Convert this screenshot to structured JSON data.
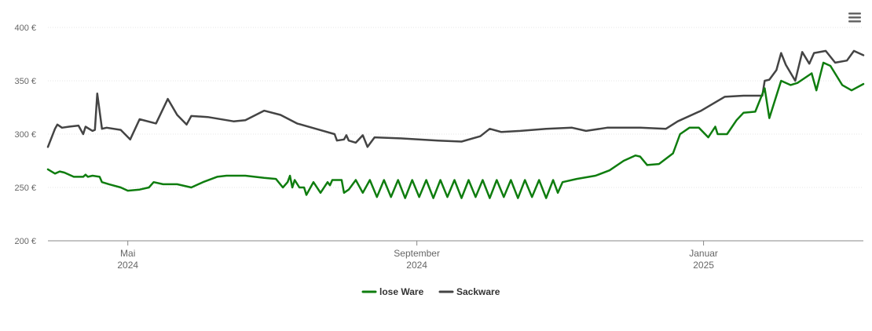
{
  "chart_data": {
    "type": "line",
    "y_unit": "€",
    "ylim": [
      200,
      400
    ],
    "y_ticks": [
      {
        "value": 200,
        "label": "200 €"
      },
      {
        "value": 250,
        "label": "250 €"
      },
      {
        "value": 300,
        "label": "300 €"
      },
      {
        "value": 350,
        "label": "350 €"
      },
      {
        "value": 400,
        "label": "400 €"
      }
    ],
    "xlim": [
      "2024-03-28",
      "2025-03-10"
    ],
    "x_ticks": [
      {
        "date": "2024-05-01",
        "line1": "Mai",
        "line2": "2024"
      },
      {
        "date": "2024-09-01",
        "line1": "September",
        "line2": "2024"
      },
      {
        "date": "2025-01-01",
        "line1": "Januar",
        "line2": "2025"
      }
    ],
    "grid": true,
    "legend_position": "bottom-center",
    "series": [
      {
        "name": "lose Ware",
        "color": "#0f7d0f",
        "points": [
          [
            "2024-03-28",
            267
          ],
          [
            "2024-03-31",
            263
          ],
          [
            "2024-04-02",
            265
          ],
          [
            "2024-04-04",
            264
          ],
          [
            "2024-04-08",
            260
          ],
          [
            "2024-04-12",
            260
          ],
          [
            "2024-04-13",
            262
          ],
          [
            "2024-04-14",
            260
          ],
          [
            "2024-04-16",
            261
          ],
          [
            "2024-04-19",
            260
          ],
          [
            "2024-04-20",
            255
          ],
          [
            "2024-04-23",
            253
          ],
          [
            "2024-04-28",
            250
          ],
          [
            "2024-05-01",
            247
          ],
          [
            "2024-05-06",
            248
          ],
          [
            "2024-05-10",
            250
          ],
          [
            "2024-05-12",
            255
          ],
          [
            "2024-05-16",
            253
          ],
          [
            "2024-05-22",
            253
          ],
          [
            "2024-05-28",
            250
          ],
          [
            "2024-06-02",
            255
          ],
          [
            "2024-06-08",
            260
          ],
          [
            "2024-06-12",
            261
          ],
          [
            "2024-06-20",
            261
          ],
          [
            "2024-06-28",
            259
          ],
          [
            "2024-07-03",
            258
          ],
          [
            "2024-07-06",
            250
          ],
          [
            "2024-07-08",
            255
          ],
          [
            "2024-07-09",
            261
          ],
          [
            "2024-07-10",
            250
          ],
          [
            "2024-07-11",
            257
          ],
          [
            "2024-07-13",
            250
          ],
          [
            "2024-07-15",
            250
          ],
          [
            "2024-07-16",
            243
          ],
          [
            "2024-07-19",
            255
          ],
          [
            "2024-07-22",
            245
          ],
          [
            "2024-07-25",
            255
          ],
          [
            "2024-07-26",
            252
          ],
          [
            "2024-07-27",
            257
          ],
          [
            "2024-07-31",
            257
          ],
          [
            "2024-08-01",
            245
          ],
          [
            "2024-08-03",
            248
          ],
          [
            "2024-08-06",
            257
          ],
          [
            "2024-08-09",
            245
          ],
          [
            "2024-08-12",
            257
          ],
          [
            "2024-08-15",
            241
          ],
          [
            "2024-08-18",
            257
          ],
          [
            "2024-08-21",
            241
          ],
          [
            "2024-08-24",
            257
          ],
          [
            "2024-08-27",
            240
          ],
          [
            "2024-08-30",
            257
          ],
          [
            "2024-09-02",
            241
          ],
          [
            "2024-09-05",
            257
          ],
          [
            "2024-09-08",
            240
          ],
          [
            "2024-09-11",
            257
          ],
          [
            "2024-09-14",
            241
          ],
          [
            "2024-09-17",
            257
          ],
          [
            "2024-09-20",
            240
          ],
          [
            "2024-09-23",
            257
          ],
          [
            "2024-09-26",
            241
          ],
          [
            "2024-09-29",
            257
          ],
          [
            "2024-10-02",
            240
          ],
          [
            "2024-10-05",
            257
          ],
          [
            "2024-10-08",
            241
          ],
          [
            "2024-10-11",
            257
          ],
          [
            "2024-10-14",
            240
          ],
          [
            "2024-10-17",
            257
          ],
          [
            "2024-10-20",
            241
          ],
          [
            "2024-10-23",
            257
          ],
          [
            "2024-10-26",
            240
          ],
          [
            "2024-10-29",
            257
          ],
          [
            "2024-10-31",
            245
          ],
          [
            "2024-11-02",
            255
          ],
          [
            "2024-11-08",
            258
          ],
          [
            "2024-11-16",
            261
          ],
          [
            "2024-11-22",
            266
          ],
          [
            "2024-11-28",
            275
          ],
          [
            "2024-12-03",
            280
          ],
          [
            "2024-12-05",
            279
          ],
          [
            "2024-12-08",
            271
          ],
          [
            "2024-12-13",
            272
          ],
          [
            "2024-12-19",
            282
          ],
          [
            "2024-12-22",
            300
          ],
          [
            "2024-12-26",
            306
          ],
          [
            "2024-12-30",
            306
          ],
          [
            "2025-01-03",
            297
          ],
          [
            "2025-01-06",
            307
          ],
          [
            "2025-01-07",
            300
          ],
          [
            "2025-01-11",
            300
          ],
          [
            "2025-01-15",
            313
          ],
          [
            "2025-01-18",
            320
          ],
          [
            "2025-01-23",
            321
          ],
          [
            "2025-01-27",
            343
          ],
          [
            "2025-01-29",
            315
          ],
          [
            "2025-02-03",
            350
          ],
          [
            "2025-02-07",
            346
          ],
          [
            "2025-02-10",
            348
          ],
          [
            "2025-02-16",
            357
          ],
          [
            "2025-02-18",
            341
          ],
          [
            "2025-02-21",
            367
          ],
          [
            "2025-02-24",
            364
          ],
          [
            "2025-03-01",
            346
          ],
          [
            "2025-03-05",
            341
          ],
          [
            "2025-03-10",
            347
          ]
        ]
      },
      {
        "name": "Sackware",
        "color": "#444444",
        "points": [
          [
            "2024-03-28",
            288
          ],
          [
            "2024-03-31",
            305
          ],
          [
            "2024-04-01",
            309
          ],
          [
            "2024-04-03",
            306
          ],
          [
            "2024-04-06",
            307
          ],
          [
            "2024-04-10",
            308
          ],
          [
            "2024-04-12",
            300
          ],
          [
            "2024-04-13",
            307
          ],
          [
            "2024-04-16",
            303
          ],
          [
            "2024-04-17",
            304
          ],
          [
            "2024-04-18",
            338
          ],
          [
            "2024-04-20",
            305
          ],
          [
            "2024-04-22",
            306
          ],
          [
            "2024-04-28",
            304
          ],
          [
            "2024-05-02",
            295
          ],
          [
            "2024-05-06",
            314
          ],
          [
            "2024-05-13",
            310
          ],
          [
            "2024-05-18",
            333
          ],
          [
            "2024-05-22",
            318
          ],
          [
            "2024-05-26",
            309
          ],
          [
            "2024-05-28",
            317
          ],
          [
            "2024-06-04",
            316
          ],
          [
            "2024-06-15",
            312
          ],
          [
            "2024-06-20",
            313
          ],
          [
            "2024-06-28",
            322
          ],
          [
            "2024-07-05",
            318
          ],
          [
            "2024-07-12",
            310
          ],
          [
            "2024-07-20",
            305
          ],
          [
            "2024-07-28",
            300
          ],
          [
            "2024-07-29",
            294
          ],
          [
            "2024-08-01",
            295
          ],
          [
            "2024-08-02",
            299
          ],
          [
            "2024-08-03",
            294
          ],
          [
            "2024-08-06",
            292
          ],
          [
            "2024-08-09",
            299
          ],
          [
            "2024-08-11",
            288
          ],
          [
            "2024-08-14",
            297
          ],
          [
            "2024-08-25",
            296
          ],
          [
            "2024-09-10",
            294
          ],
          [
            "2024-09-20",
            293
          ],
          [
            "2024-09-28",
            298
          ],
          [
            "2024-10-02",
            305
          ],
          [
            "2024-10-07",
            302
          ],
          [
            "2024-10-15",
            303
          ],
          [
            "2024-10-26",
            305
          ],
          [
            "2024-11-06",
            306
          ],
          [
            "2024-11-12",
            303
          ],
          [
            "2024-11-21",
            306
          ],
          [
            "2024-12-05",
            306
          ],
          [
            "2024-12-16",
            305
          ],
          [
            "2024-12-21",
            312
          ],
          [
            "2024-12-31",
            322
          ],
          [
            "2025-01-10",
            335
          ],
          [
            "2025-01-18",
            336
          ],
          [
            "2025-01-26",
            336
          ],
          [
            "2025-01-27",
            350
          ],
          [
            "2025-01-29",
            351
          ],
          [
            "2025-02-01",
            360
          ],
          [
            "2025-02-03",
            376
          ],
          [
            "2025-02-05",
            365
          ],
          [
            "2025-02-09",
            350
          ],
          [
            "2025-02-12",
            377
          ],
          [
            "2025-02-15",
            366
          ],
          [
            "2025-02-17",
            376
          ],
          [
            "2025-02-22",
            378
          ],
          [
            "2025-02-26",
            367
          ],
          [
            "2025-03-03",
            369
          ],
          [
            "2025-03-06",
            378
          ],
          [
            "2025-03-10",
            374
          ]
        ]
      }
    ]
  }
}
